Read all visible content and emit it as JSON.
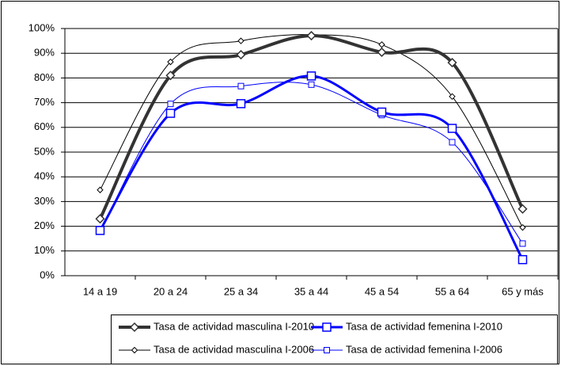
{
  "chart_data": {
    "type": "line",
    "categories": [
      "14 a 19",
      "20 a 24",
      "25 a 34",
      "35 a 44",
      "45 a 54",
      "55 a 64",
      "65 y más"
    ],
    "series": [
      {
        "name": "Tasa de actividad masculina I-2010",
        "color": "#333333",
        "marker": "diamond",
        "width": 4,
        "values": [
          23,
          81,
          89.4,
          97.1,
          90.4,
          86.2,
          27
        ]
      },
      {
        "name": "Tasa de actividad femenina I-2010",
        "color": "#0000ff",
        "marker": "square",
        "width": 3,
        "values": [
          18.3,
          65.7,
          69.6,
          80.8,
          66.2,
          59.6,
          6.5
        ]
      },
      {
        "name": "Tasa de actividad masculina I-2006",
        "color": "#000000",
        "marker": "diamond",
        "width": 1,
        "values": [
          34.7,
          86.5,
          95,
          97.5,
          93.5,
          72.5,
          19.5
        ]
      },
      {
        "name": "Tasa de actividad femenina I-2006",
        "color": "#0000ff",
        "marker": "square",
        "width": 1,
        "values": [
          18,
          69.5,
          76.7,
          77.3,
          65,
          54,
          13
        ]
      }
    ],
    "ylim": [
      0,
      100
    ],
    "yticks": [
      {
        "value": 0,
        "label": "0%"
      },
      {
        "value": 10,
        "label": "10%"
      },
      {
        "value": 20,
        "label": "20%"
      },
      {
        "value": 30,
        "label": "30%"
      },
      {
        "value": 40,
        "label": "40%"
      },
      {
        "value": 50,
        "label": "50%"
      },
      {
        "value": 60,
        "label": "60%"
      },
      {
        "value": 70,
        "label": "70%"
      },
      {
        "value": 80,
        "label": "80%"
      },
      {
        "value": 90,
        "label": "90%"
      },
      {
        "value": 100,
        "label": "100%"
      }
    ],
    "grid": true,
    "smooth": true,
    "legend": "bottom"
  }
}
